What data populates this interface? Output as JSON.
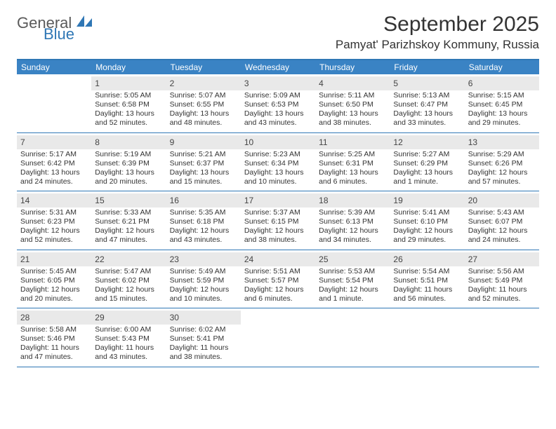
{
  "brand": {
    "word1": "General",
    "word2": "Blue"
  },
  "title": "September 2025",
  "location": "Pamyat' Parizhskoy Kommuny, Russia",
  "colors": {
    "header_bg": "#3a83c4",
    "border": "#2f77b5",
    "daynum_bg": "#e9e9e9",
    "text": "#333333",
    "brand_gray": "#5a5a5a",
    "brand_blue": "#2f77b5"
  },
  "fonts": {
    "title_size": 30,
    "location_size": 17,
    "dayheader_size": 12,
    "daynum_size": 12,
    "info_size": 10.5
  },
  "day_names": [
    "Sunday",
    "Monday",
    "Tuesday",
    "Wednesday",
    "Thursday",
    "Friday",
    "Saturday"
  ],
  "weeks": [
    [
      {
        "n": "",
        "sr": "",
        "ss": "",
        "dl": ""
      },
      {
        "n": "1",
        "sr": "Sunrise: 5:05 AM",
        "ss": "Sunset: 6:58 PM",
        "dl": "Daylight: 13 hours and 52 minutes."
      },
      {
        "n": "2",
        "sr": "Sunrise: 5:07 AM",
        "ss": "Sunset: 6:55 PM",
        "dl": "Daylight: 13 hours and 48 minutes."
      },
      {
        "n": "3",
        "sr": "Sunrise: 5:09 AM",
        "ss": "Sunset: 6:53 PM",
        "dl": "Daylight: 13 hours and 43 minutes."
      },
      {
        "n": "4",
        "sr": "Sunrise: 5:11 AM",
        "ss": "Sunset: 6:50 PM",
        "dl": "Daylight: 13 hours and 38 minutes."
      },
      {
        "n": "5",
        "sr": "Sunrise: 5:13 AM",
        "ss": "Sunset: 6:47 PM",
        "dl": "Daylight: 13 hours and 33 minutes."
      },
      {
        "n": "6",
        "sr": "Sunrise: 5:15 AM",
        "ss": "Sunset: 6:45 PM",
        "dl": "Daylight: 13 hours and 29 minutes."
      }
    ],
    [
      {
        "n": "7",
        "sr": "Sunrise: 5:17 AM",
        "ss": "Sunset: 6:42 PM",
        "dl": "Daylight: 13 hours and 24 minutes."
      },
      {
        "n": "8",
        "sr": "Sunrise: 5:19 AM",
        "ss": "Sunset: 6:39 PM",
        "dl": "Daylight: 13 hours and 20 minutes."
      },
      {
        "n": "9",
        "sr": "Sunrise: 5:21 AM",
        "ss": "Sunset: 6:37 PM",
        "dl": "Daylight: 13 hours and 15 minutes."
      },
      {
        "n": "10",
        "sr": "Sunrise: 5:23 AM",
        "ss": "Sunset: 6:34 PM",
        "dl": "Daylight: 13 hours and 10 minutes."
      },
      {
        "n": "11",
        "sr": "Sunrise: 5:25 AM",
        "ss": "Sunset: 6:31 PM",
        "dl": "Daylight: 13 hours and 6 minutes."
      },
      {
        "n": "12",
        "sr": "Sunrise: 5:27 AM",
        "ss": "Sunset: 6:29 PM",
        "dl": "Daylight: 13 hours and 1 minute."
      },
      {
        "n": "13",
        "sr": "Sunrise: 5:29 AM",
        "ss": "Sunset: 6:26 PM",
        "dl": "Daylight: 12 hours and 57 minutes."
      }
    ],
    [
      {
        "n": "14",
        "sr": "Sunrise: 5:31 AM",
        "ss": "Sunset: 6:23 PM",
        "dl": "Daylight: 12 hours and 52 minutes."
      },
      {
        "n": "15",
        "sr": "Sunrise: 5:33 AM",
        "ss": "Sunset: 6:21 PM",
        "dl": "Daylight: 12 hours and 47 minutes."
      },
      {
        "n": "16",
        "sr": "Sunrise: 5:35 AM",
        "ss": "Sunset: 6:18 PM",
        "dl": "Daylight: 12 hours and 43 minutes."
      },
      {
        "n": "17",
        "sr": "Sunrise: 5:37 AM",
        "ss": "Sunset: 6:15 PM",
        "dl": "Daylight: 12 hours and 38 minutes."
      },
      {
        "n": "18",
        "sr": "Sunrise: 5:39 AM",
        "ss": "Sunset: 6:13 PM",
        "dl": "Daylight: 12 hours and 34 minutes."
      },
      {
        "n": "19",
        "sr": "Sunrise: 5:41 AM",
        "ss": "Sunset: 6:10 PM",
        "dl": "Daylight: 12 hours and 29 minutes."
      },
      {
        "n": "20",
        "sr": "Sunrise: 5:43 AM",
        "ss": "Sunset: 6:07 PM",
        "dl": "Daylight: 12 hours and 24 minutes."
      }
    ],
    [
      {
        "n": "21",
        "sr": "Sunrise: 5:45 AM",
        "ss": "Sunset: 6:05 PM",
        "dl": "Daylight: 12 hours and 20 minutes."
      },
      {
        "n": "22",
        "sr": "Sunrise: 5:47 AM",
        "ss": "Sunset: 6:02 PM",
        "dl": "Daylight: 12 hours and 15 minutes."
      },
      {
        "n": "23",
        "sr": "Sunrise: 5:49 AM",
        "ss": "Sunset: 5:59 PM",
        "dl": "Daylight: 12 hours and 10 minutes."
      },
      {
        "n": "24",
        "sr": "Sunrise: 5:51 AM",
        "ss": "Sunset: 5:57 PM",
        "dl": "Daylight: 12 hours and 6 minutes."
      },
      {
        "n": "25",
        "sr": "Sunrise: 5:53 AM",
        "ss": "Sunset: 5:54 PM",
        "dl": "Daylight: 12 hours and 1 minute."
      },
      {
        "n": "26",
        "sr": "Sunrise: 5:54 AM",
        "ss": "Sunset: 5:51 PM",
        "dl": "Daylight: 11 hours and 56 minutes."
      },
      {
        "n": "27",
        "sr": "Sunrise: 5:56 AM",
        "ss": "Sunset: 5:49 PM",
        "dl": "Daylight: 11 hours and 52 minutes."
      }
    ],
    [
      {
        "n": "28",
        "sr": "Sunrise: 5:58 AM",
        "ss": "Sunset: 5:46 PM",
        "dl": "Daylight: 11 hours and 47 minutes."
      },
      {
        "n": "29",
        "sr": "Sunrise: 6:00 AM",
        "ss": "Sunset: 5:43 PM",
        "dl": "Daylight: 11 hours and 43 minutes."
      },
      {
        "n": "30",
        "sr": "Sunrise: 6:02 AM",
        "ss": "Sunset: 5:41 PM",
        "dl": "Daylight: 11 hours and 38 minutes."
      },
      {
        "n": "",
        "sr": "",
        "ss": "",
        "dl": ""
      },
      {
        "n": "",
        "sr": "",
        "ss": "",
        "dl": ""
      },
      {
        "n": "",
        "sr": "",
        "ss": "",
        "dl": ""
      },
      {
        "n": "",
        "sr": "",
        "ss": "",
        "dl": ""
      }
    ]
  ]
}
